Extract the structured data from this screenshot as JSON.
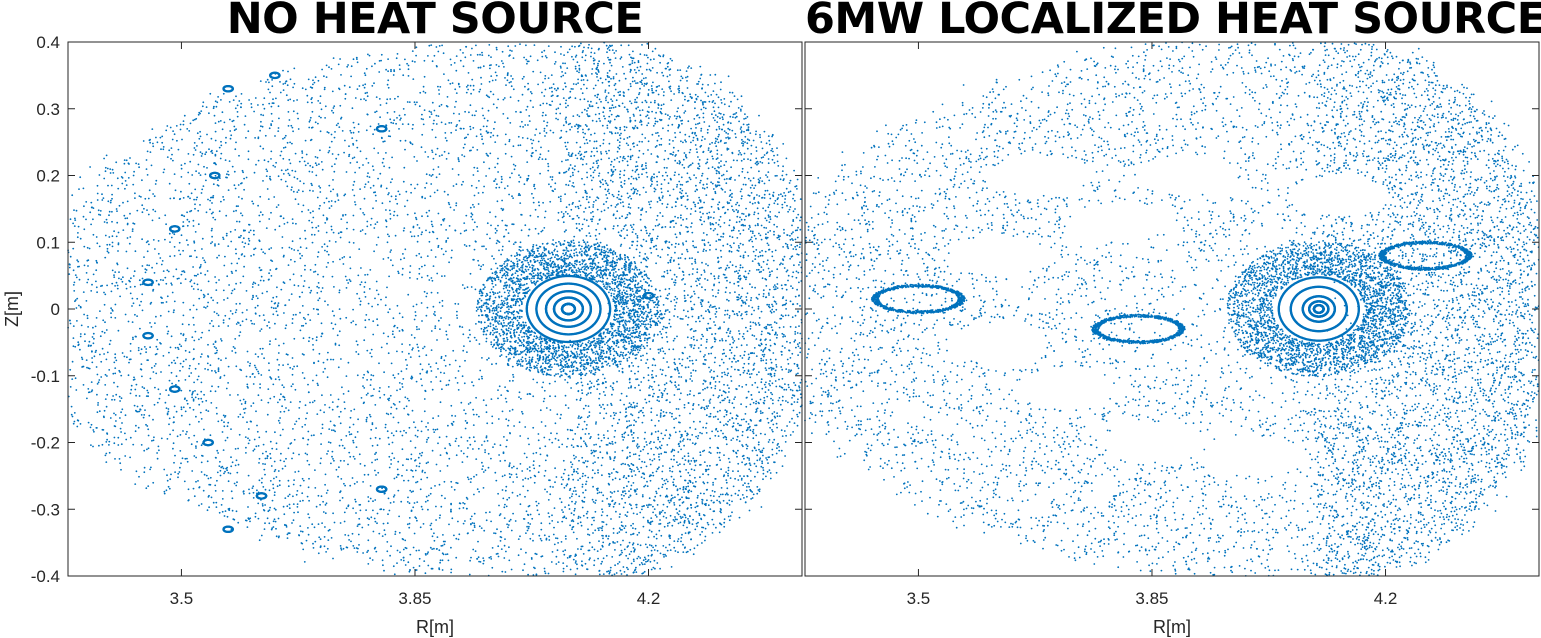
{
  "chart_data": [
    {
      "type": "scatter",
      "title": "NO HEAT SOURCE",
      "xlabel": "R[m]",
      "ylabel": "Z[m]",
      "xlim": [
        3.33,
        4.43
      ],
      "ylim": [
        -0.4,
        0.4
      ],
      "xticks": [
        "3.5",
        "3.85",
        "4.2"
      ],
      "yticks": [
        "-0.4",
        "-0.3",
        "-0.2",
        "-0.1",
        "0",
        "0.1",
        "0.2",
        "0.3",
        "0.4"
      ],
      "grid": false,
      "marker_color": "#0072BD",
      "center": [
        4.08,
        0.0
      ],
      "plasma_extent": {
        "r": [
          3.33,
          4.43
        ],
        "z": [
          -0.4,
          0.4
        ]
      },
      "core_rings_minor_radius": [
        0.008,
        0.018,
        0.028,
        0.04,
        0.052
      ],
      "islands": [
        {
          "r": 3.64,
          "z": 0.35
        },
        {
          "r": 3.55,
          "z": 0.2
        },
        {
          "r": 3.49,
          "z": 0.12
        },
        {
          "r": 3.45,
          "z": 0.04
        },
        {
          "r": 3.45,
          "z": -0.04
        },
        {
          "r": 3.49,
          "z": -0.12
        },
        {
          "r": 3.54,
          "z": -0.2
        },
        {
          "r": 3.62,
          "z": -0.28
        },
        {
          "r": 3.8,
          "z": 0.27
        },
        {
          "r": 3.8,
          "z": -0.27
        },
        {
          "r": 4.2,
          "z": 0.02
        },
        {
          "r": 3.57,
          "z": 0.33
        },
        {
          "r": 3.57,
          "z": -0.33
        }
      ]
    },
    {
      "type": "scatter",
      "title": "6MW LOCALIZED HEAT SOURCE",
      "xlabel": "R[m]",
      "ylabel": "",
      "xlim": [
        3.33,
        4.43
      ],
      "ylim": [
        -0.4,
        0.4
      ],
      "xticks": [
        "3.5",
        "3.85",
        "4.2"
      ],
      "yticks": [],
      "grid": false,
      "marker_color": "#0072BD",
      "center": [
        4.1,
        0.0
      ],
      "plasma_extent": {
        "r": [
          3.33,
          4.43
        ],
        "z": [
          -0.4,
          0.4
        ]
      },
      "core_rings_minor_radius": [
        0.006,
        0.012,
        0.02,
        0.035,
        0.05
      ],
      "empty_islands": [
        {
          "r": 3.68,
          "z": 0.2
        },
        {
          "r": 3.8,
          "z": 0.13
        },
        {
          "r": 3.9,
          "z": 0.2
        },
        {
          "r": 3.72,
          "z": -0.12
        },
        {
          "r": 3.85,
          "z": -0.2
        },
        {
          "r": 3.62,
          "z": -0.05
        },
        {
          "r": 3.62,
          "z": 0.08
        },
        {
          "r": 4.0,
          "z": -0.22
        },
        {
          "r": 4.13,
          "z": 0.17
        }
      ],
      "dense_crescents": [
        {
          "r": 3.83,
          "z": -0.03
        },
        {
          "r": 3.5,
          "z": 0.015
        },
        {
          "r": 4.26,
          "z": 0.08
        }
      ]
    }
  ]
}
